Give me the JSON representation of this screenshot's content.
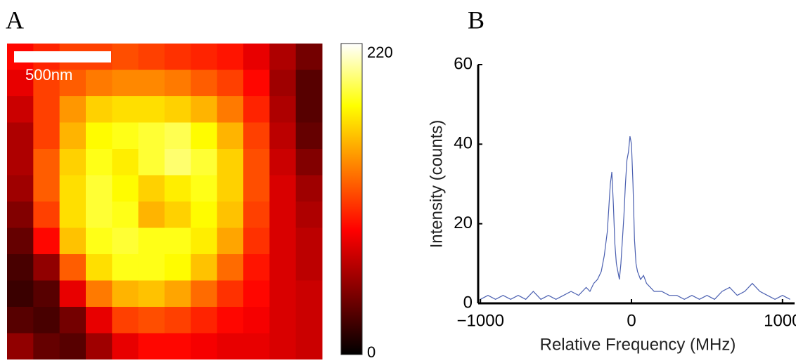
{
  "chart_data": [
    {
      "type": "heatmap",
      "panel_label": "A",
      "scale_bar_label": "500nm",
      "colormap": "hot",
      "values": [
        [
          90,
          100,
          110,
          110,
          115,
          110,
          105,
          100,
          95,
          80,
          60,
          40
        ],
        [
          80,
          110,
          120,
          130,
          135,
          135,
          130,
          120,
          110,
          90,
          55,
          30
        ],
        [
          70,
          110,
          140,
          160,
          165,
          165,
          160,
          150,
          130,
          100,
          60,
          30
        ],
        [
          60,
          110,
          150,
          175,
          180,
          185,
          190,
          175,
          150,
          110,
          65,
          35
        ],
        [
          60,
          120,
          160,
          180,
          170,
          185,
          195,
          185,
          160,
          115,
          70,
          45
        ],
        [
          55,
          120,
          165,
          185,
          175,
          160,
          170,
          180,
          160,
          115,
          75,
          55
        ],
        [
          45,
          110,
          165,
          185,
          180,
          150,
          160,
          175,
          155,
          110,
          75,
          60
        ],
        [
          35,
          90,
          155,
          180,
          185,
          180,
          180,
          170,
          145,
          105,
          75,
          65
        ],
        [
          25,
          50,
          120,
          165,
          180,
          180,
          175,
          155,
          125,
          95,
          75,
          65
        ],
        [
          20,
          30,
          80,
          130,
          150,
          155,
          145,
          125,
          105,
          90,
          75,
          70
        ],
        [
          30,
          25,
          40,
          80,
          110,
          115,
          110,
          100,
          90,
          85,
          75,
          70
        ],
        [
          50,
          35,
          30,
          55,
          80,
          90,
          90,
          85,
          80,
          80,
          75,
          70
        ]
      ],
      "clim": [
        0,
        220
      ],
      "cticks": [
        0,
        220
      ]
    },
    {
      "type": "line",
      "panel_label": "B",
      "xlabel": "Relative Frequency (MHz)",
      "ylabel": "Intensity (counts)",
      "x": [
        -1000,
        -950,
        -900,
        -850,
        -800,
        -750,
        -700,
        -650,
        -600,
        -550,
        -500,
        -450,
        -400,
        -350,
        -300,
        -275,
        -250,
        -225,
        -200,
        -180,
        -160,
        -150,
        -140,
        -130,
        -120,
        -110,
        -100,
        -90,
        -80,
        -70,
        -60,
        -50,
        -40,
        -30,
        -20,
        -10,
        0,
        10,
        20,
        30,
        40,
        60,
        80,
        100,
        125,
        150,
        200,
        250,
        300,
        350,
        400,
        450,
        500,
        550,
        600,
        650,
        700,
        750,
        800,
        850,
        900,
        950,
        1000,
        1050
      ],
      "series": [
        {
          "color": "#4a5fb0",
          "values": [
            1,
            2,
            1,
            2,
            1,
            2,
            1,
            3,
            1,
            2,
            1,
            2,
            3,
            2,
            4,
            3,
            5,
            6,
            8,
            12,
            18,
            24,
            30,
            33,
            25,
            15,
            10,
            8,
            6,
            10,
            16,
            22,
            30,
            36,
            38,
            42,
            40,
            30,
            16,
            10,
            8,
            6,
            7,
            5,
            4,
            3,
            3,
            2,
            2,
            1,
            2,
            1,
            2,
            1,
            3,
            4,
            2,
            3,
            5,
            3,
            2,
            1,
            2,
            1
          ]
        }
      ],
      "xlim": [
        -1015,
        1080
      ],
      "ylim": [
        0,
        60
      ],
      "xticks": [
        {
          "value": -1000,
          "label": "−1000"
        },
        0,
        1000
      ],
      "yticks": [
        0,
        20,
        40,
        60
      ]
    }
  ]
}
